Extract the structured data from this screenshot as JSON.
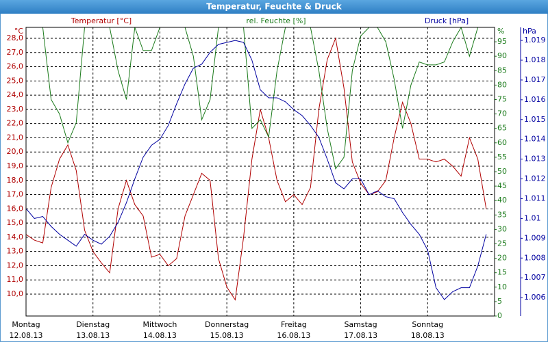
{
  "chart_data": {
    "type": "line",
    "title": "Temperatur, Feuchte & Druck",
    "y_unit": "°C",
    "y2_unit": "%",
    "y3_unit": "hPa",
    "xlim": [
      0,
      7
    ],
    "xticks": [
      {
        "value": 0,
        "label": "Montag",
        "date": "12.08.13"
      },
      {
        "value": 1,
        "label": "Dienstag",
        "date": "13.08.13"
      },
      {
        "value": 2,
        "label": "Mittwoch",
        "date": "14.08.13"
      },
      {
        "value": 3,
        "label": "Donnerstag",
        "date": "15.08.13"
      },
      {
        "value": 4,
        "label": "Freitag",
        "date": "16.08.13"
      },
      {
        "value": 5,
        "label": "Samstag",
        "date": "17.08.13"
      },
      {
        "value": 6,
        "label": "Sonntag",
        "date": "18.08.13"
      }
    ],
    "ylim": [
      8.46,
      28.77
    ],
    "yticks": [
      {
        "value": 10,
        "label": "10,0"
      },
      {
        "value": 11,
        "label": "11,0"
      },
      {
        "value": 12,
        "label": "12,0"
      },
      {
        "value": 13,
        "label": "13,0"
      },
      {
        "value": 14,
        "label": "14,0"
      },
      {
        "value": 15,
        "label": "15,0"
      },
      {
        "value": 16,
        "label": "16,0"
      },
      {
        "value": 17,
        "label": "17,0"
      },
      {
        "value": 18,
        "label": "18,0"
      },
      {
        "value": 19,
        "label": "19,0"
      },
      {
        "value": 20,
        "label": "20,0"
      },
      {
        "value": 21,
        "label": "21,0"
      },
      {
        "value": 22,
        "label": "22,0"
      },
      {
        "value": 23,
        "label": "23,0"
      },
      {
        "value": 24,
        "label": "24,0"
      },
      {
        "value": 25,
        "label": "25,0"
      },
      {
        "value": 26,
        "label": "26,0"
      },
      {
        "value": 27,
        "label": "27,0"
      },
      {
        "value": 28,
        "label": "28,0"
      }
    ],
    "y2lim": [
      0,
      100
    ],
    "y2ticks": [
      0,
      5,
      10,
      15,
      20,
      25,
      30,
      35,
      40,
      45,
      50,
      55,
      60,
      65,
      70,
      75,
      80,
      85,
      90,
      95
    ],
    "y3lim": [
      1.00507,
      1.01966
    ],
    "y3ticks": [
      1.006,
      1.007,
      1.008,
      1.009,
      1.01,
      1.011,
      1.012,
      1.013,
      1.014,
      1.015,
      1.016,
      1.017,
      1.018,
      1.019
    ],
    "grid": true,
    "x": [
      0,
      0.125,
      0.25,
      0.375,
      0.5,
      0.625,
      0.75,
      0.875,
      1,
      1.125,
      1.25,
      1.375,
      1.5,
      1.625,
      1.75,
      1.875,
      2,
      2.125,
      2.25,
      2.375,
      2.5,
      2.625,
      2.75,
      2.875,
      3,
      3.125,
      3.25,
      3.375,
      3.5,
      3.625,
      3.75,
      3.875,
      4,
      4.125,
      4.25,
      4.375,
      4.5,
      4.625,
      4.75,
      4.875,
      5,
      5.125,
      5.25,
      5.375,
      5.5,
      5.625,
      5.75,
      5.875,
      6,
      6.125,
      6.25,
      6.375,
      6.5,
      6.625,
      6.75,
      6.875
    ],
    "series": [
      {
        "name": "Temperatur [°C]",
        "color": "#b00000",
        "axis": "y",
        "values": [
          14.2,
          13.8,
          13.6,
          17.5,
          19.5,
          20.5,
          18.7,
          14.5,
          13.0,
          12.2,
          11.5,
          16.0,
          18.0,
          16.3,
          15.5,
          12.6,
          12.8,
          12.0,
          12.5,
          15.5,
          17.0,
          18.5,
          18.0,
          12.5,
          10.5,
          9.6,
          14.0,
          19.5,
          23.0,
          21.0,
          18.0,
          16.5,
          17.0,
          16.3,
          17.5,
          23.0,
          26.5,
          28.0,
          24.5,
          19.3,
          17.8,
          17.0,
          17.2,
          18.0,
          21.0,
          23.5,
          22.0,
          19.5,
          19.5,
          19.3,
          19.5,
          19.0,
          18.3,
          21.0,
          19.5,
          16.0
        ]
      },
      {
        "name": "rel. Feuchte [%]",
        "color": "#1a7a1a",
        "axis": "y2",
        "values": [
          100,
          100,
          100,
          75,
          70,
          60,
          67,
          100,
          100,
          100,
          100,
          85,
          75,
          100,
          92,
          92,
          100,
          100,
          100,
          100,
          90,
          68,
          75,
          100,
          100,
          100,
          100,
          65,
          68,
          62,
          85,
          100,
          100,
          100,
          100,
          85,
          65,
          51,
          55,
          85,
          97,
          100,
          100,
          95,
          82,
          65,
          80,
          88,
          87,
          87,
          88,
          95,
          100,
          90,
          100,
          100
        ]
      },
      {
        "name": "Druck [hPa]",
        "color": "#0000a0",
        "axis": "y3",
        "values": [
          1.0105,
          1.01,
          1.0101,
          1.0096,
          1.0092,
          1.0089,
          1.0086,
          1.0092,
          1.0089,
          1.0087,
          1.0091,
          1.0098,
          1.0108,
          1.012,
          1.0131,
          1.0137,
          1.014,
          1.0147,
          1.0158,
          1.0168,
          1.0176,
          1.0178,
          1.0184,
          1.0188,
          1.0189,
          1.019,
          1.0189,
          1.018,
          1.0165,
          1.0161,
          1.0161,
          1.0159,
          1.0155,
          1.0152,
          1.0147,
          1.0141,
          1.013,
          1.0118,
          1.0115,
          1.012,
          1.012,
          1.0112,
          1.0114,
          1.0111,
          1.011,
          1.0103,
          1.0097,
          1.0092,
          1.0084,
          1.0065,
          1.0059,
          1.0063,
          1.0065,
          1.0065,
          1.0076,
          1.0092
        ]
      }
    ]
  }
}
